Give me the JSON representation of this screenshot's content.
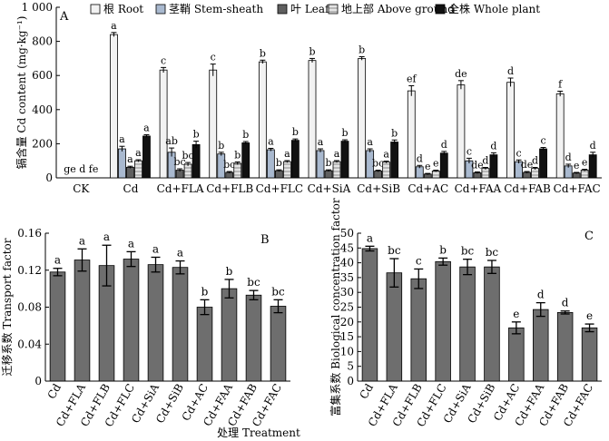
{
  "x_title": "处理 Treatment",
  "chart_data": [
    {
      "panel": "A",
      "type": "bar",
      "ylabel": "镉含量 Cd content (mg·kg⁻¹)",
      "ylim": [
        0,
        1000
      ],
      "yticks": [
        "0",
        "200",
        "400",
        "600",
        "800",
        "1 000"
      ],
      "legend_position": "top",
      "categories": [
        "CK",
        "Cd",
        "Cd+FLA",
        "Cd+FLB",
        "Cd+FLC",
        "Cd+SiA",
        "Cd+SiB",
        "Cd+AC",
        "Cd+FAA",
        "Cd+FAB",
        "Cd+FAC"
      ],
      "ck_label": "ge d fe",
      "series": [
        {
          "name": "根 Root",
          "color": "#f2f2f2",
          "values": [
            0,
            840,
            632,
            632,
            680,
            688,
            700,
            510,
            545,
            560,
            493
          ],
          "errors": [
            0,
            12,
            15,
            35,
            10,
            12,
            10,
            30,
            25,
            25,
            15
          ],
          "labels": [
            "",
            "a",
            "c",
            "c",
            "b",
            "b",
            "b",
            "ef",
            "de",
            "d",
            "f"
          ]
        },
        {
          "name": "茎鞘 Stem-sheath",
          "color": "#a9b9cf",
          "values": [
            0,
            170,
            150,
            140,
            165,
            160,
            160,
            65,
            100,
            95,
            70
          ],
          "errors": [
            0,
            15,
            25,
            10,
            8,
            10,
            10,
            8,
            15,
            10,
            10
          ],
          "labels": [
            "",
            "a",
            "ab",
            "b",
            "a",
            "a",
            "a",
            "d",
            "c",
            "c",
            "d"
          ]
        },
        {
          "name": "叶 Leaf",
          "color": "#5f5f5f",
          "values": [
            0,
            62,
            45,
            32,
            42,
            42,
            40,
            22,
            30,
            32,
            28
          ],
          "errors": [
            0,
            6,
            8,
            5,
            5,
            5,
            5,
            4,
            5,
            5,
            4
          ],
          "labels": [
            "",
            "a",
            "bc",
            "bc",
            "b",
            "b",
            "bc",
            "e",
            "de",
            "de",
            "e"
          ]
        },
        {
          "name": "地上部 Above ground",
          "color": "#e4e4e4",
          "values": [
            0,
            100,
            80,
            85,
            95,
            95,
            92,
            40,
            55,
            55,
            45
          ],
          "errors": [
            0,
            6,
            10,
            8,
            6,
            6,
            6,
            5,
            6,
            6,
            5
          ],
          "labels": [
            "",
            "a",
            "bc",
            "b",
            "a",
            "a",
            "a",
            "e",
            "d",
            "d",
            "e"
          ]
        },
        {
          "name": "全株 Whole plant",
          "color": "#111111",
          "values": [
            0,
            245,
            195,
            205,
            220,
            215,
            210,
            145,
            135,
            170,
            135
          ],
          "errors": [
            0,
            8,
            20,
            8,
            8,
            8,
            12,
            10,
            12,
            8,
            15
          ],
          "labels": [
            "",
            "a",
            "b",
            "b",
            "b",
            "b",
            "b",
            "d",
            "d",
            "c",
            "d"
          ]
        }
      ]
    },
    {
      "panel": "B",
      "type": "bar",
      "ylabel": "迁移系数 Transport factor",
      "ylim": [
        0,
        0.16
      ],
      "yticks": [
        "0",
        "0.04",
        "0.08",
        "0.12",
        "0.16"
      ],
      "categories": [
        "Cd",
        "Cd+FLA",
        "Cd+FLB",
        "Cd+FLC",
        "Cd+SiA",
        "Cd+SiB",
        "Cd+AC",
        "Cd+FAA",
        "Cd+FAB",
        "Cd+FAC"
      ],
      "color": "#6e6e6e",
      "values": [
        0.118,
        0.131,
        0.125,
        0.132,
        0.126,
        0.123,
        0.08,
        0.1,
        0.093,
        0.081
      ],
      "errors": [
        0.004,
        0.012,
        0.022,
        0.008,
        0.008,
        0.007,
        0.008,
        0.01,
        0.005,
        0.007
      ],
      "labels": [
        "a",
        "a",
        "a",
        "a",
        "a",
        "a",
        "b",
        "b",
        "bc",
        "bc"
      ]
    },
    {
      "panel": "C",
      "type": "bar",
      "ylabel": "富集系数 Biological concentration factor",
      "ylim": [
        0,
        50
      ],
      "yticks": [
        "0",
        "5",
        "10",
        "15",
        "20",
        "25",
        "30",
        "35",
        "40",
        "45",
        "50"
      ],
      "categories": [
        "Cd",
        "Cd+FLA",
        "Cd+FLB",
        "Cd+FLC",
        "Cd+SiA",
        "Cd+SiB",
        "Cd+AC",
        "Cd+FAA",
        "Cd+FAB",
        "Cd+FAC"
      ],
      "color": "#6e6e6e",
      "values": [
        44.8,
        36.6,
        34.6,
        40.4,
        38.6,
        38.6,
        18.0,
        24.2,
        23.2,
        18.0
      ],
      "errors": [
        0.8,
        4.8,
        3.3,
        1.2,
        2.6,
        2.2,
        2.0,
        2.3,
        0.5,
        1.3
      ],
      "labels": [
        "a",
        "bc",
        "c",
        "b",
        "bc",
        "bc",
        "e",
        "d",
        "d",
        "e"
      ]
    }
  ]
}
